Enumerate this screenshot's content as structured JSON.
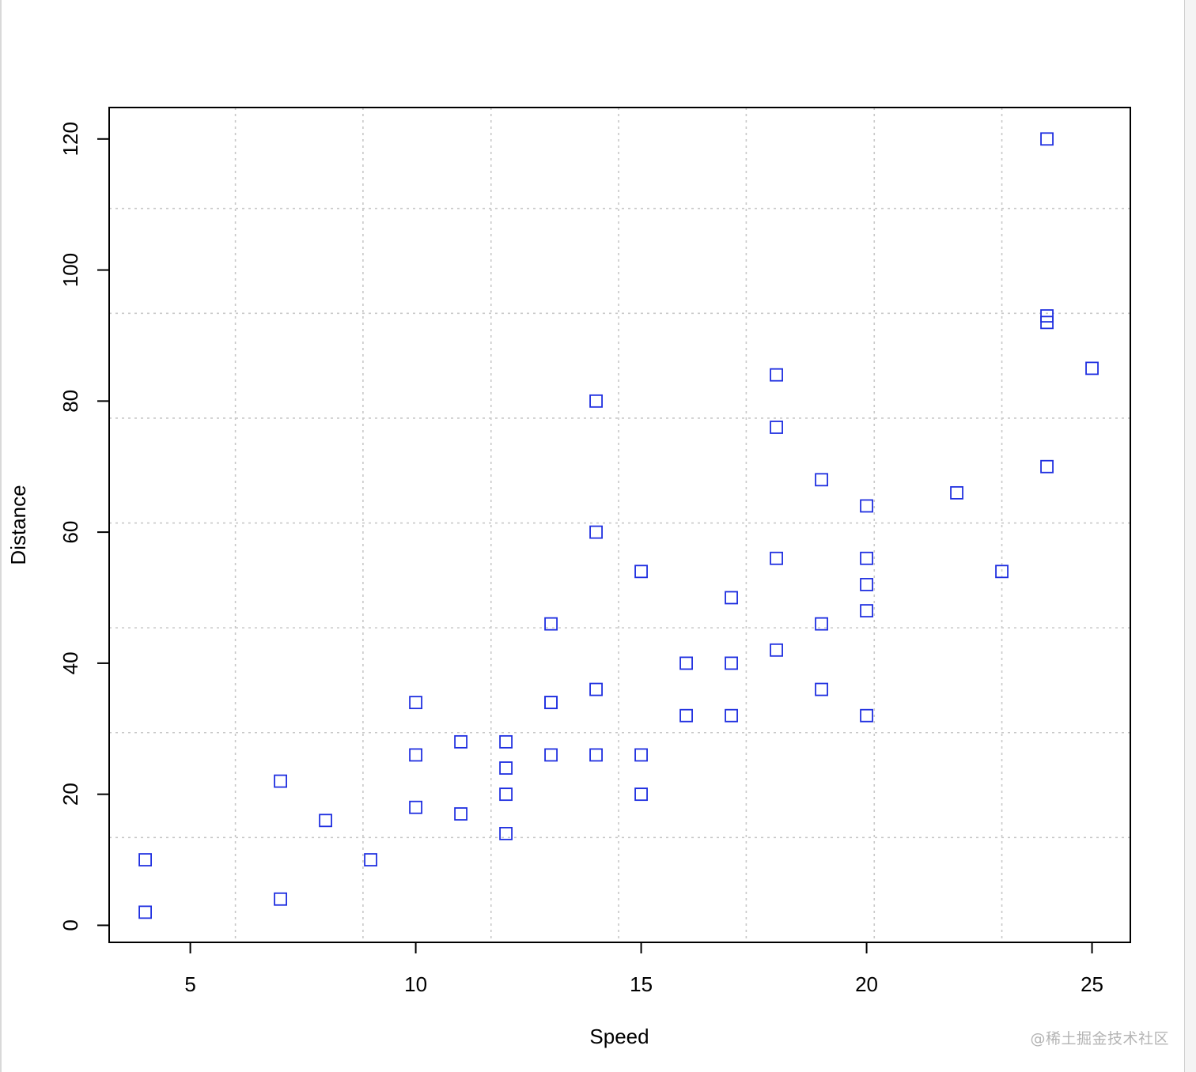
{
  "chart_data": {
    "type": "scatter",
    "xlabel": "Speed",
    "ylabel": "Distance",
    "xlim": [
      3.2,
      25.85
    ],
    "ylim": [
      -2.6,
      124.8
    ],
    "xticks": [
      5,
      10,
      15,
      20,
      25
    ],
    "yticks": [
      0,
      20,
      40,
      60,
      80,
      100,
      120
    ],
    "xtick_labels": [
      "5",
      "10",
      "15",
      "20",
      "25"
    ],
    "ytick_labels": [
      "0",
      "20",
      "40",
      "60",
      "80",
      "100",
      "120"
    ],
    "grid": true,
    "xgrid": [
      6,
      8.83,
      11.67,
      14.5,
      17.33,
      20.17,
      23
    ],
    "ygrid": [
      13.4,
      29.4,
      45.4,
      61.4,
      77.4,
      93.4,
      109.4
    ],
    "marker": "square-open",
    "color": "#1f2fe0",
    "series": [
      {
        "points": [
          [
            4,
            2
          ],
          [
            4,
            10
          ],
          [
            7,
            4
          ],
          [
            7,
            22
          ],
          [
            8,
            16
          ],
          [
            9,
            10
          ],
          [
            10,
            18
          ],
          [
            10,
            26
          ],
          [
            10,
            34
          ],
          [
            11,
            17
          ],
          [
            11,
            28
          ],
          [
            12,
            14
          ],
          [
            12,
            20
          ],
          [
            12,
            24
          ],
          [
            12,
            28
          ],
          [
            13,
            26
          ],
          [
            13,
            34
          ],
          [
            13,
            34
          ],
          [
            13,
            46
          ],
          [
            14,
            26
          ],
          [
            14,
            36
          ],
          [
            14,
            60
          ],
          [
            14,
            80
          ],
          [
            15,
            20
          ],
          [
            15,
            26
          ],
          [
            15,
            54
          ],
          [
            16,
            32
          ],
          [
            16,
            40
          ],
          [
            17,
            32
          ],
          [
            17,
            40
          ],
          [
            17,
            50
          ],
          [
            18,
            42
          ],
          [
            18,
            56
          ],
          [
            18,
            76
          ],
          [
            18,
            84
          ],
          [
            19,
            36
          ],
          [
            19,
            46
          ],
          [
            19,
            68
          ],
          [
            20,
            32
          ],
          [
            20,
            48
          ],
          [
            20,
            52
          ],
          [
            20,
            56
          ],
          [
            20,
            64
          ],
          [
            22,
            66
          ],
          [
            23,
            54
          ],
          [
            24,
            70
          ],
          [
            24,
            92
          ],
          [
            24,
            93
          ],
          [
            24,
            120
          ],
          [
            25,
            85
          ]
        ]
      }
    ]
  },
  "watermark": "@稀土掘金技术社区"
}
